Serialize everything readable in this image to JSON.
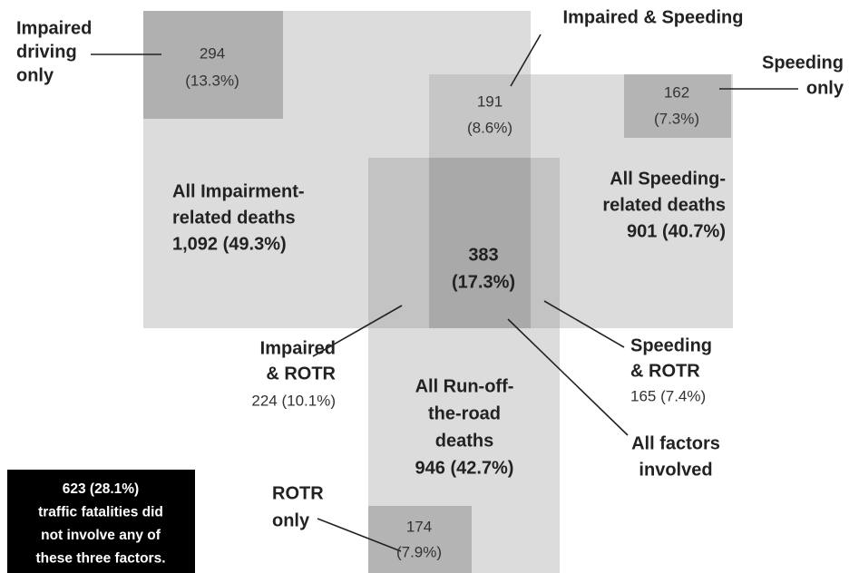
{
  "regions": {
    "impaired_only": {
      "label": [
        "Impaired",
        "driving",
        "only"
      ],
      "count": "294",
      "percent": "(13.3%)"
    },
    "impaired_speeding": {
      "label": [
        "Impaired & Speeding"
      ],
      "count": "191",
      "percent": "(8.6%)"
    },
    "speeding_only": {
      "label": [
        "Speeding",
        "only"
      ],
      "count": "162",
      "percent": "(7.3%)"
    },
    "all_impairment": {
      "label": [
        "All Impairment-",
        "related deaths",
        "1,092 (49.3%)"
      ]
    },
    "all_speeding": {
      "label": [
        "All Speeding-",
        "related deaths",
        "901 (40.7%)"
      ]
    },
    "all_factors": {
      "label": [
        "All factors",
        "involved"
      ],
      "count": "383",
      "percent": "(17.3%)"
    },
    "impaired_rotr": {
      "label": [
        "Impaired",
        "& ROTR"
      ],
      "value": "224 (10.1%)"
    },
    "speeding_rotr": {
      "label": [
        "Speeding",
        "& ROTR"
      ],
      "value": "165 (7.4%)"
    },
    "all_rotr": {
      "label": [
        "All Run-off-",
        "the-road",
        "deaths",
        "946 (42.7%)"
      ]
    },
    "rotr_only": {
      "label": [
        "ROTR",
        "only"
      ],
      "count": "174",
      "percent": "(7.9%)"
    }
  },
  "note": [
    "623 (28.1%)",
    "traffic fatalities did",
    "not involve any of",
    "these three factors."
  ]
}
